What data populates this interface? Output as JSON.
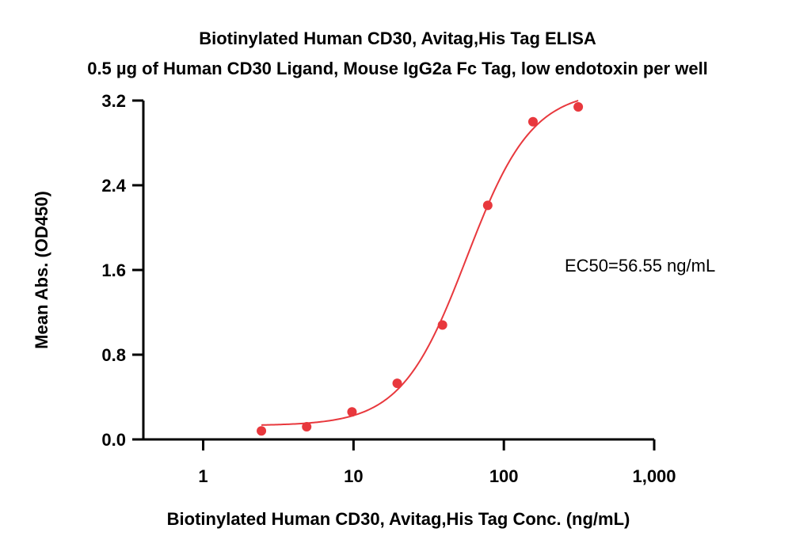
{
  "chart_data": {
    "type": "scatter",
    "title": "Biotinylated Human CD30, Avitag,His Tag ELISA",
    "subtitle": "0.5 µg of Human CD30 Ligand, Mouse IgG2a Fc Tag, low endotoxin per well",
    "xlabel": "Biotinylated Human CD30, Avitag,His Tag Conc. (ng/mL)",
    "ylabel": "Mean Abs. (OD450)",
    "xscale": "log",
    "xlim": [
      0.4,
      1000
    ],
    "ylim": [
      0,
      3.2
    ],
    "xticks": [
      {
        "value": 1,
        "label": "1"
      },
      {
        "value": 10,
        "label": "10"
      },
      {
        "value": 100,
        "label": "100"
      },
      {
        "value": 1000,
        "label": "1,000"
      }
    ],
    "yticks": [
      {
        "value": 0,
        "label": "0.0"
      },
      {
        "value": 0.8,
        "label": "0.8"
      },
      {
        "value": 1.6,
        "label": "1.6"
      },
      {
        "value": 2.4,
        "label": "2.4"
      },
      {
        "value": 3.2,
        "label": "3.2"
      }
    ],
    "series": [
      {
        "color": "#e8383d",
        "points": [
          {
            "x": 2.44,
            "y": 0.08
          },
          {
            "x": 4.88,
            "y": 0.12
          },
          {
            "x": 9.77,
            "y": 0.26
          },
          {
            "x": 19.53,
            "y": 0.53
          },
          {
            "x": 39.06,
            "y": 1.08
          },
          {
            "x": 78.13,
            "y": 2.21
          },
          {
            "x": 156.25,
            "y": 3.0
          },
          {
            "x": 312.5,
            "y": 3.14
          }
        ],
        "fit": {
          "model": "4PL",
          "bottom": 0.13,
          "top": 3.3,
          "ec50": 56.55,
          "hill": 2.0,
          "x_range": [
            2.44,
            312.5
          ]
        }
      }
    ],
    "annotations": [
      "EC50=56.55 ng/mL"
    ],
    "grid": false,
    "legend": "none"
  }
}
